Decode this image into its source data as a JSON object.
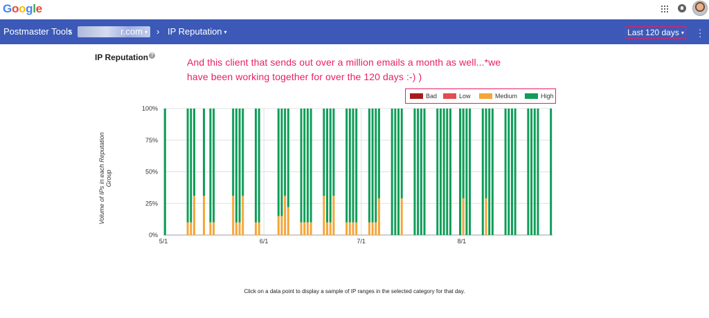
{
  "header": {
    "logo_letters": [
      {
        "ch": "G",
        "color": "#4285f4"
      },
      {
        "ch": "o",
        "color": "#ea4335"
      },
      {
        "ch": "o",
        "color": "#fbbc05"
      },
      {
        "ch": "g",
        "color": "#4285f4"
      },
      {
        "ch": "l",
        "color": "#34a853"
      },
      {
        "ch": "e",
        "color": "#ea4335"
      }
    ],
    "apps_icon": "apps-grid-icon",
    "notification_icon": "notification-icon",
    "avatar_icon": "user-avatar"
  },
  "nav": {
    "app_title": "Postmaster Tools",
    "separator": "›",
    "domain_value": "r.com",
    "section": "IP Reputation",
    "date_range": "Last 120 days",
    "caret": "▾",
    "menu_icon": "more-vert-icon",
    "bar_color": "#3c59b8"
  },
  "page": {
    "title": "IP Reputation",
    "help_icon": "?",
    "annotation": "And this client that sends out over a million emails a month as well...*we have been working together for over the 120 days :-) )",
    "annotation_color": "#e91e63",
    "footnote": "Click on a data point to display a sample of IP ranges in the selected category for that day."
  },
  "chart_data": {
    "type": "bar",
    "stacked": true,
    "ylabel": "Volume of IPs in each Reputation Group",
    "yticks": [
      "100%",
      "75%",
      "50%",
      "25%",
      "0%"
    ],
    "ylim": [
      0,
      100
    ],
    "xlim": [
      0,
      120
    ],
    "xticks": [
      {
        "label": "5/1",
        "day": 0
      },
      {
        "label": "6/1",
        "day": 31
      },
      {
        "label": "7/1",
        "day": 61
      },
      {
        "label": "8/1",
        "day": 92
      }
    ],
    "grid": true,
    "legend_position": "top-right",
    "series": [
      {
        "name": "Bad",
        "color": "#a61c1c"
      },
      {
        "name": "Low",
        "color": "#e24d4d"
      },
      {
        "name": "Medium",
        "color": "#f4a63a"
      },
      {
        "name": "High",
        "color": "#0f9d58"
      }
    ],
    "days": [
      {
        "day": 0,
        "medium": 0
      },
      {
        "day": 7,
        "medium": 10
      },
      {
        "day": 8,
        "medium": 10
      },
      {
        "day": 9,
        "medium": 31
      },
      {
        "day": 12,
        "medium": 31
      },
      {
        "day": 14,
        "medium": 10
      },
      {
        "day": 15,
        "medium": 10
      },
      {
        "day": 21,
        "medium": 31
      },
      {
        "day": 22,
        "medium": 10
      },
      {
        "day": 23,
        "medium": 10
      },
      {
        "day": 24,
        "medium": 31
      },
      {
        "day": 28,
        "medium": 10
      },
      {
        "day": 29,
        "medium": 10
      },
      {
        "day": 35,
        "medium": 15
      },
      {
        "day": 36,
        "medium": 15
      },
      {
        "day": 37,
        "medium": 31
      },
      {
        "day": 38,
        "medium": 22
      },
      {
        "day": 42,
        "medium": 10
      },
      {
        "day": 43,
        "medium": 10
      },
      {
        "day": 44,
        "medium": 10
      },
      {
        "day": 45,
        "medium": 10
      },
      {
        "day": 49,
        "medium": 31
      },
      {
        "day": 50,
        "medium": 10
      },
      {
        "day": 51,
        "medium": 10
      },
      {
        "day": 52,
        "medium": 31
      },
      {
        "day": 56,
        "medium": 10
      },
      {
        "day": 57,
        "medium": 10
      },
      {
        "day": 58,
        "medium": 10
      },
      {
        "day": 59,
        "medium": 10
      },
      {
        "day": 63,
        "medium": 10
      },
      {
        "day": 64,
        "medium": 10
      },
      {
        "day": 65,
        "medium": 10
      },
      {
        "day": 66,
        "medium": 29
      },
      {
        "day": 70,
        "medium": 0
      },
      {
        "day": 71,
        "medium": 0
      },
      {
        "day": 72,
        "medium": 0
      },
      {
        "day": 73,
        "medium": 29
      },
      {
        "day": 77,
        "medium": 0
      },
      {
        "day": 78,
        "medium": 0
      },
      {
        "day": 79,
        "medium": 0
      },
      {
        "day": 80,
        "medium": 0
      },
      {
        "day": 84,
        "medium": 0
      },
      {
        "day": 85,
        "medium": 0
      },
      {
        "day": 86,
        "medium": 0
      },
      {
        "day": 87,
        "medium": 0
      },
      {
        "day": 88,
        "medium": 0
      },
      {
        "day": 91,
        "medium": 0
      },
      {
        "day": 92,
        "medium": 29
      },
      {
        "day": 93,
        "medium": 0
      },
      {
        "day": 94,
        "medium": 0
      },
      {
        "day": 98,
        "medium": 0
      },
      {
        "day": 99,
        "medium": 29
      },
      {
        "day": 100,
        "medium": 0
      },
      {
        "day": 101,
        "medium": 0
      },
      {
        "day": 105,
        "medium": 0
      },
      {
        "day": 106,
        "medium": 0
      },
      {
        "day": 107,
        "medium": 0
      },
      {
        "day": 108,
        "medium": 0
      },
      {
        "day": 112,
        "medium": 0
      },
      {
        "day": 113,
        "medium": 0
      },
      {
        "day": 114,
        "medium": 0
      },
      {
        "day": 115,
        "medium": 0
      },
      {
        "day": 119,
        "medium": 0
      }
    ]
  }
}
